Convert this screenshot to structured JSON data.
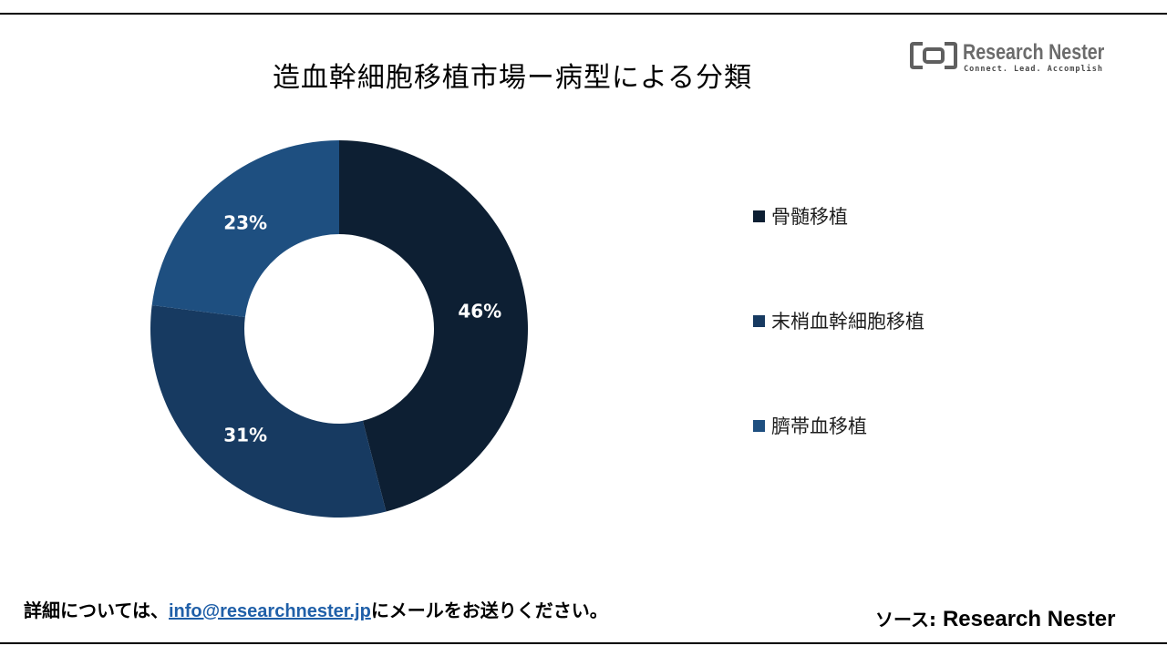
{
  "title": "造血幹細胞移植市場ー病型による分類",
  "logo": {
    "name": "Research Nester",
    "tagline": "Connect. Lead. Accomplish",
    "icon": "research-nester-logo-icon"
  },
  "chart_data": {
    "type": "pie",
    "donut": true,
    "categories": [
      "骨髄移植",
      "末梢血幹細胞移植",
      "臍帯血移植"
    ],
    "values": [
      46,
      31,
      23
    ],
    "value_labels": [
      "46%",
      "31%",
      "23%"
    ],
    "colors": [
      "#0d1f33",
      "#173a61",
      "#1e4f80"
    ],
    "legend_position": "right"
  },
  "footer": {
    "prefix": "詳細については、",
    "email": "info@researchnester.jp",
    "suffix": "にメールをお送りください。",
    "source_label": "ソース: ",
    "source_name": "Research Nester"
  }
}
